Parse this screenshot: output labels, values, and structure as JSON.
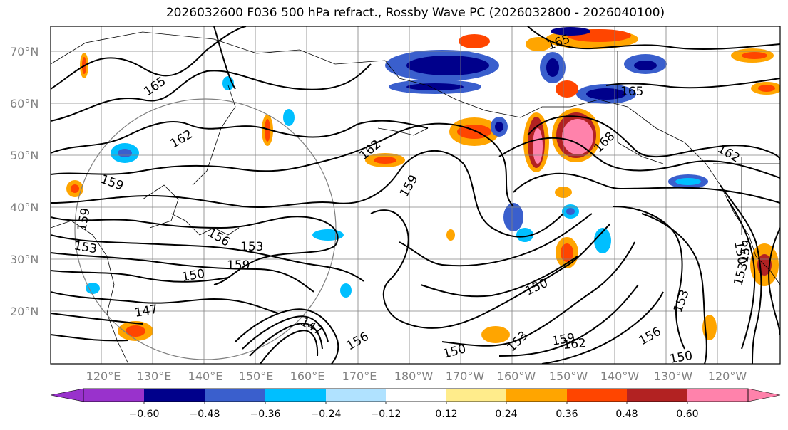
{
  "title": "2026032600 F036 500 hPa refract., Rossby Wave PC (2026032800 - 2026040100)",
  "lat_labels": [
    "70°N",
    "60°N",
    "50°N",
    "40°N",
    "30°N",
    "20°N"
  ],
  "lon_labels": [
    "120°E",
    "130°E",
    "140°E",
    "150°E",
    "160°E",
    "170°E",
    "180°W",
    "170°W",
    "160°W",
    "150°W",
    "140°W",
    "130°W",
    "120°W"
  ],
  "contour_labels": [
    "165",
    "165",
    "165",
    "162",
    "162",
    "162",
    "159",
    "159",
    "159",
    "159",
    "159",
    "156",
    "156",
    "156",
    "153",
    "153",
    "153",
    "153",
    "153",
    "150",
    "150",
    "150",
    "150",
    "150",
    "147",
    "147",
    "168",
    "159",
    "162"
  ],
  "colorbar": {
    "ticks": [
      "−0.60",
      "−0.48",
      "−0.36",
      "−0.24",
      "−0.12",
      "0.12",
      "0.24",
      "0.36",
      "0.48",
      "0.60"
    ],
    "colors": [
      "#9932cc",
      "#00008b",
      "#3a5fcd",
      "#00bfff",
      "#b0e2ff",
      "#ffffff",
      "#ffec8b",
      "#ffa500",
      "#ff4500",
      "#b22222",
      "#ff82ab"
    ]
  },
  "palette": {
    "darkblue": "#00008b",
    "blue": "#3a5fcd",
    "cyan": "#00bfff",
    "lightblue": "#b0e2ff",
    "yellow": "#ffec8b",
    "orange": "#ffa500",
    "red": "#ff4500",
    "darkred": "#b22222",
    "pink": "#ff82ab",
    "grid": "#808080"
  }
}
